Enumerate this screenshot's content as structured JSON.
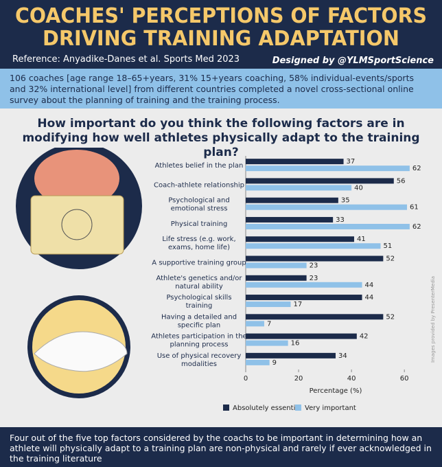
{
  "header": {
    "title_lines": [
      "COACHES' PERCEPTIONS OF FACTORS",
      "DRIVING TRAINING ADAPTATION"
    ],
    "reference": "Reference: Anyadike-Danes et al. Sports Med 2023",
    "credit": "Designed by @YLMSportScience"
  },
  "intro": "106 coaches [age range 18–65+years, 31% 15+years coaching, 58% individual-events/sports and 32% international level] from different countries completed a novel cross-sectional online survey about the planning of training and the training process.",
  "image_credit": "Images provided by PresenterMedia",
  "chart_data": {
    "type": "bar",
    "orientation": "horizontal",
    "title": "How important do you think the following factors are in modifying how well athletes physically adapt to the training plan?",
    "categories": [
      "Athletes belief in the plan",
      "Coach-athlete relationship",
      "Psychological and\nemotional stress",
      "Physical training",
      "Life stress (e.g. work,\nexams, home life)",
      "A supportive training group",
      "Athlete's genetics and/or\nnatural ability",
      "Psychological skills\ntraining",
      "Having a detailed and\nspecific plan",
      "Athletes participation in the\nplanning process",
      "Use of physical recovery\nmodalities"
    ],
    "series": [
      {
        "name": "Absolutely essential",
        "color": "#1c2b4a",
        "values": [
          37,
          56,
          35,
          33,
          41,
          52,
          23,
          44,
          52,
          42,
          34
        ]
      },
      {
        "name": "Very important",
        "color": "#8fc1e8",
        "values": [
          62,
          40,
          61,
          62,
          51,
          23,
          44,
          17,
          7,
          16,
          9
        ]
      }
    ],
    "xlabel": "Percentage (%)",
    "xlim": [
      0,
      68
    ],
    "xticks": [
      0,
      20,
      40,
      60
    ],
    "legend": "bottom"
  },
  "footer": "Four out of the five top factors considered by the coachs to be important in determining how an athlete will physically adapt to a training plan are non-physical and rarely if ever acknowledged in the training literature"
}
